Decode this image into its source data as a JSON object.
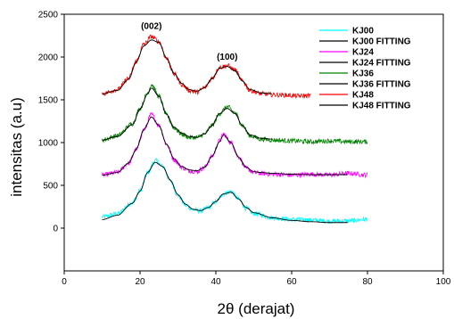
{
  "chart_data": {
    "type": "line",
    "title": "",
    "xlabel": "2θ (derajat)",
    "ylabel": "intensitas (a.u)",
    "xlim": [
      0,
      100
    ],
    "ylim": [
      -500,
      2500
    ],
    "xticks": [
      0,
      20,
      40,
      60,
      80,
      100
    ],
    "yticks": [
      0,
      500,
      1000,
      1500,
      2000,
      2500
    ],
    "grid": false,
    "legend_position": "top-right",
    "annotations": [
      {
        "text": "(002)",
        "x": 23,
        "y": 2330
      },
      {
        "text": "(100)",
        "x": 43,
        "y": 1970
      }
    ],
    "series": [
      {
        "name": "KJ00",
        "color": "#00ffff",
        "style": "noisy",
        "x": [
          10,
          14,
          18,
          20,
          22,
          24,
          26,
          28,
          30,
          32,
          34,
          36,
          38,
          40,
          42,
          44,
          46,
          48,
          50,
          55,
          60,
          65,
          70,
          75,
          80
        ],
        "y": [
          130,
          170,
          300,
          440,
          650,
          790,
          720,
          550,
          380,
          270,
          215,
          200,
          240,
          310,
          400,
          430,
          340,
          230,
          170,
          120,
          100,
          95,
          80,
          85,
          105
        ]
      },
      {
        "name": "KJ00 FITTING",
        "color": "#000000",
        "style": "smooth",
        "x": [
          10,
          14,
          18,
          20,
          22,
          24,
          26,
          28,
          30,
          32,
          34,
          36,
          38,
          40,
          42,
          44,
          46,
          48,
          50,
          55,
          60,
          65,
          70,
          75
        ],
        "y": [
          100,
          150,
          290,
          430,
          650,
          770,
          720,
          560,
          390,
          280,
          220,
          205,
          240,
          310,
          400,
          420,
          340,
          240,
          180,
          120,
          90,
          75,
          65,
          65
        ]
      },
      {
        "name": "KJ24",
        "color": "#ff00ff",
        "style": "noisy",
        "x": [
          10,
          14,
          17,
          19,
          21,
          23,
          25,
          27,
          29,
          31,
          33,
          35,
          37,
          39,
          41,
          42,
          44,
          46,
          48,
          50,
          52,
          55,
          60,
          65,
          70,
          75,
          80
        ],
        "y": [
          620,
          650,
          760,
          920,
          1150,
          1330,
          1200,
          980,
          800,
          710,
          670,
          660,
          710,
          840,
          1020,
          1100,
          1000,
          830,
          700,
          650,
          640,
          630,
          620,
          630,
          620,
          640,
          620
        ]
      },
      {
        "name": "KJ24 FITTING",
        "color": "#000000",
        "style": "smooth",
        "x": [
          10,
          14,
          17,
          19,
          21,
          23,
          25,
          27,
          29,
          31,
          33,
          35,
          37,
          39,
          41,
          42,
          44,
          46,
          48,
          50,
          52,
          55,
          60,
          65,
          70,
          75
        ],
        "y": [
          620,
          650,
          760,
          920,
          1150,
          1300,
          1200,
          980,
          810,
          720,
          680,
          670,
          710,
          840,
          1010,
          1090,
          1000,
          830,
          710,
          660,
          650,
          640,
          630,
          625,
          625,
          625
        ]
      },
      {
        "name": "KJ36",
        "color": "#008000",
        "style": "noisy",
        "x": [
          10,
          14,
          18,
          20,
          22,
          23,
          25,
          27,
          29,
          31,
          33,
          35,
          37,
          39,
          41,
          43,
          45,
          47,
          49,
          52,
          55,
          60,
          65,
          70,
          75,
          80
        ],
        "y": [
          1030,
          1080,
          1220,
          1400,
          1580,
          1680,
          1540,
          1320,
          1170,
          1100,
          1060,
          1060,
          1100,
          1200,
          1340,
          1420,
          1350,
          1200,
          1080,
          1040,
          1030,
          1020,
          1010,
          1020,
          1010,
          1010
        ]
      },
      {
        "name": "KJ36 FITTING",
        "color": "#000000",
        "style": "smooth",
        "x": [
          10,
          14,
          18,
          20,
          22,
          23,
          25,
          27,
          29,
          31,
          33,
          35,
          37,
          39,
          41,
          43,
          45,
          47,
          49,
          52,
          55
        ],
        "y": [
          1030,
          1070,
          1210,
          1390,
          1570,
          1640,
          1540,
          1330,
          1180,
          1110,
          1070,
          1060,
          1100,
          1200,
          1340,
          1400,
          1340,
          1200,
          1090,
          1050,
          1040
        ]
      },
      {
        "name": "KJ48",
        "color": "#ff0000",
        "style": "noisy",
        "x": [
          10,
          14,
          17,
          19,
          21,
          23,
          25,
          27,
          29,
          31,
          33,
          35,
          37,
          39,
          41,
          43,
          45,
          47,
          49,
          52,
          55,
          58,
          62,
          65
        ],
        "y": [
          1570,
          1620,
          1750,
          1950,
          2150,
          2240,
          2180,
          1980,
          1800,
          1680,
          1610,
          1590,
          1640,
          1750,
          1880,
          1900,
          1850,
          1720,
          1610,
          1570,
          1560,
          1555,
          1545,
          1550
        ]
      },
      {
        "name": "KJ48 FITTING",
        "color": "#000000",
        "style": "smooth",
        "x": [
          10,
          14,
          17,
          19,
          21,
          23,
          25,
          27,
          29,
          31,
          33,
          35,
          37,
          39,
          41,
          43,
          45,
          47,
          49,
          52,
          55
        ],
        "y": [
          1570,
          1610,
          1740,
          1940,
          2130,
          2200,
          2170,
          1990,
          1810,
          1690,
          1620,
          1600,
          1640,
          1750,
          1870,
          1890,
          1840,
          1720,
          1620,
          1580,
          1570
        ]
      }
    ]
  }
}
